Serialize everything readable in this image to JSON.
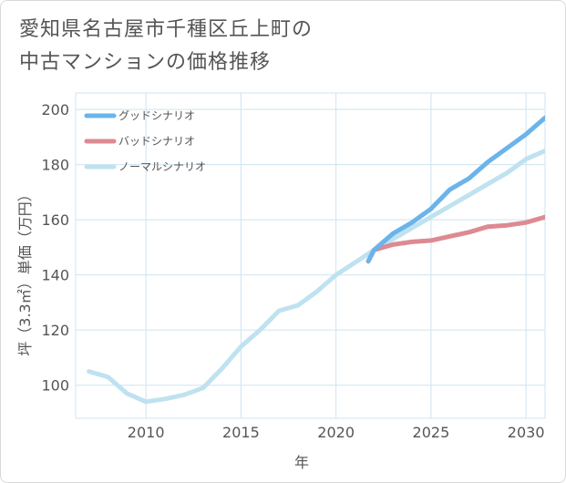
{
  "title": {
    "line1": "愛知県名古屋市千種区丘上町の",
    "line2": "中古マンションの価格推移"
  },
  "chart_data": {
    "type": "line",
    "xlabel": "年",
    "ylabel": "坪（3.3㎡）単価（万円）",
    "xlim": [
      2006.3,
      2031
    ],
    "ylim": [
      88,
      206
    ],
    "xticks": [
      2010,
      2015,
      2020,
      2025,
      2030
    ],
    "yticks": [
      100,
      120,
      140,
      160,
      180,
      200
    ],
    "grid": true,
    "legend_position": "top-left",
    "series": [
      {
        "name": "グッドシナリオ",
        "color": "#6ab4ea",
        "x": [
          2021.7,
          2022,
          2023,
          2024,
          2025,
          2026,
          2027,
          2028,
          2029,
          2030,
          2031
        ],
        "y": [
          145,
          149,
          155,
          159,
          164,
          171,
          175,
          181,
          186,
          191,
          197
        ]
      },
      {
        "name": "バッドシナリオ",
        "color": "#dd8a92",
        "x": [
          2021.7,
          2022,
          2023,
          2024,
          2025,
          2026,
          2027,
          2028,
          2029,
          2030,
          2031
        ],
        "y": [
          145,
          149,
          151,
          152,
          152.5,
          154,
          155.5,
          157.5,
          158,
          159,
          161
        ]
      },
      {
        "name": "ノーマルシナリオ",
        "color": "#bfe2f0",
        "x": [
          2007,
          2008,
          2009,
          2010,
          2011,
          2012,
          2013,
          2014,
          2015,
          2016,
          2017,
          2018,
          2019,
          2020,
          2021,
          2022,
          2023,
          2024,
          2025,
          2026,
          2027,
          2028,
          2029,
          2030,
          2031
        ],
        "y": [
          105,
          103,
          97,
          94,
          95,
          96.5,
          99,
          106,
          114,
          120,
          127,
          129,
          134,
          140,
          144.5,
          149,
          153,
          157,
          161,
          165,
          169,
          173,
          177,
          182,
          185
        ]
      }
    ]
  }
}
